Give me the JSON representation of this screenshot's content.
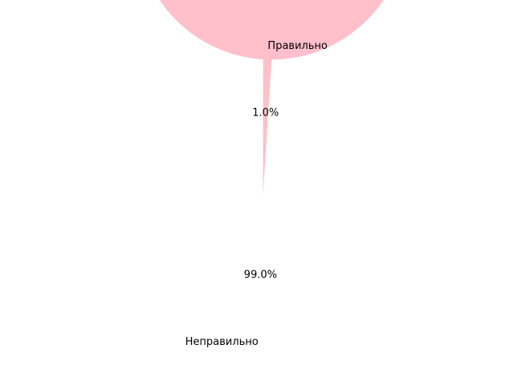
{
  "chart_data": {
    "type": "pie",
    "title": "",
    "categories": [
      "Правильно",
      "Неправильно"
    ],
    "values": [
      1.0,
      99.0
    ],
    "percent_labels": [
      "1.0%",
      "99.0%"
    ],
    "colors": [
      "#90ee90",
      "#ffc0cb"
    ],
    "start_angle_deg": 90,
    "direction": "counterclockwise",
    "legend": "none"
  }
}
